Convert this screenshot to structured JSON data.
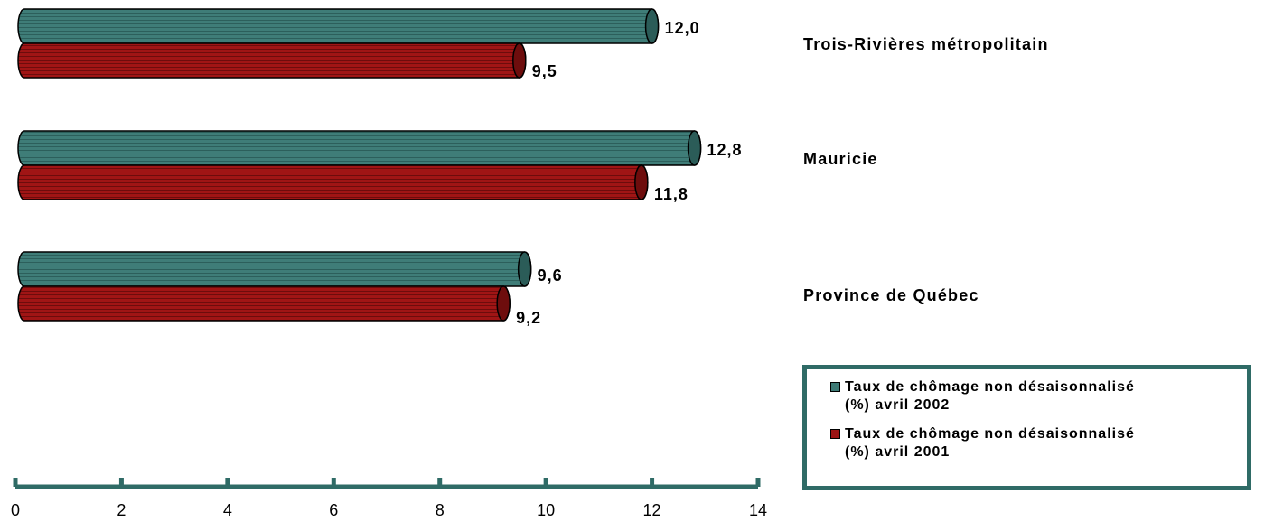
{
  "chart_data": {
    "type": "bar",
    "orientation": "horizontal",
    "categories": [
      "Trois-Rivières métropolitain",
      "Mauricie",
      "Province de Québec"
    ],
    "series": [
      {
        "name": "Taux de chômage non désaisonnalisé (%) avril 2002",
        "values": [
          12.0,
          12.8,
          9.6
        ],
        "labels": [
          "12,0",
          "12,8",
          "9,6"
        ],
        "color": "#3d7a75"
      },
      {
        "name": "Taux de chômage non désaisonnalisé (%) avril 2001",
        "values": [
          9.5,
          11.8,
          9.2
        ],
        "labels": [
          "9,5",
          "11,8",
          "9,2"
        ],
        "color": "#9b1313"
      }
    ],
    "xlim": [
      0,
      14
    ],
    "ticks": [
      "0",
      "2",
      "4",
      "6",
      "8",
      "10",
      "12",
      "14"
    ],
    "axis_color": "#2f6b66",
    "grid": false,
    "bar_style": "cylinder",
    "legend_position": "bottom-right"
  },
  "legend": {
    "items": [
      {
        "label": "Taux de chômage non désaisonnalisé\n(%) avril 2002",
        "color": "#3d7a75"
      },
      {
        "label": "Taux de chômage non désaisonnalisé\n(%) avril 2001",
        "color": "#9b1313"
      }
    ]
  }
}
